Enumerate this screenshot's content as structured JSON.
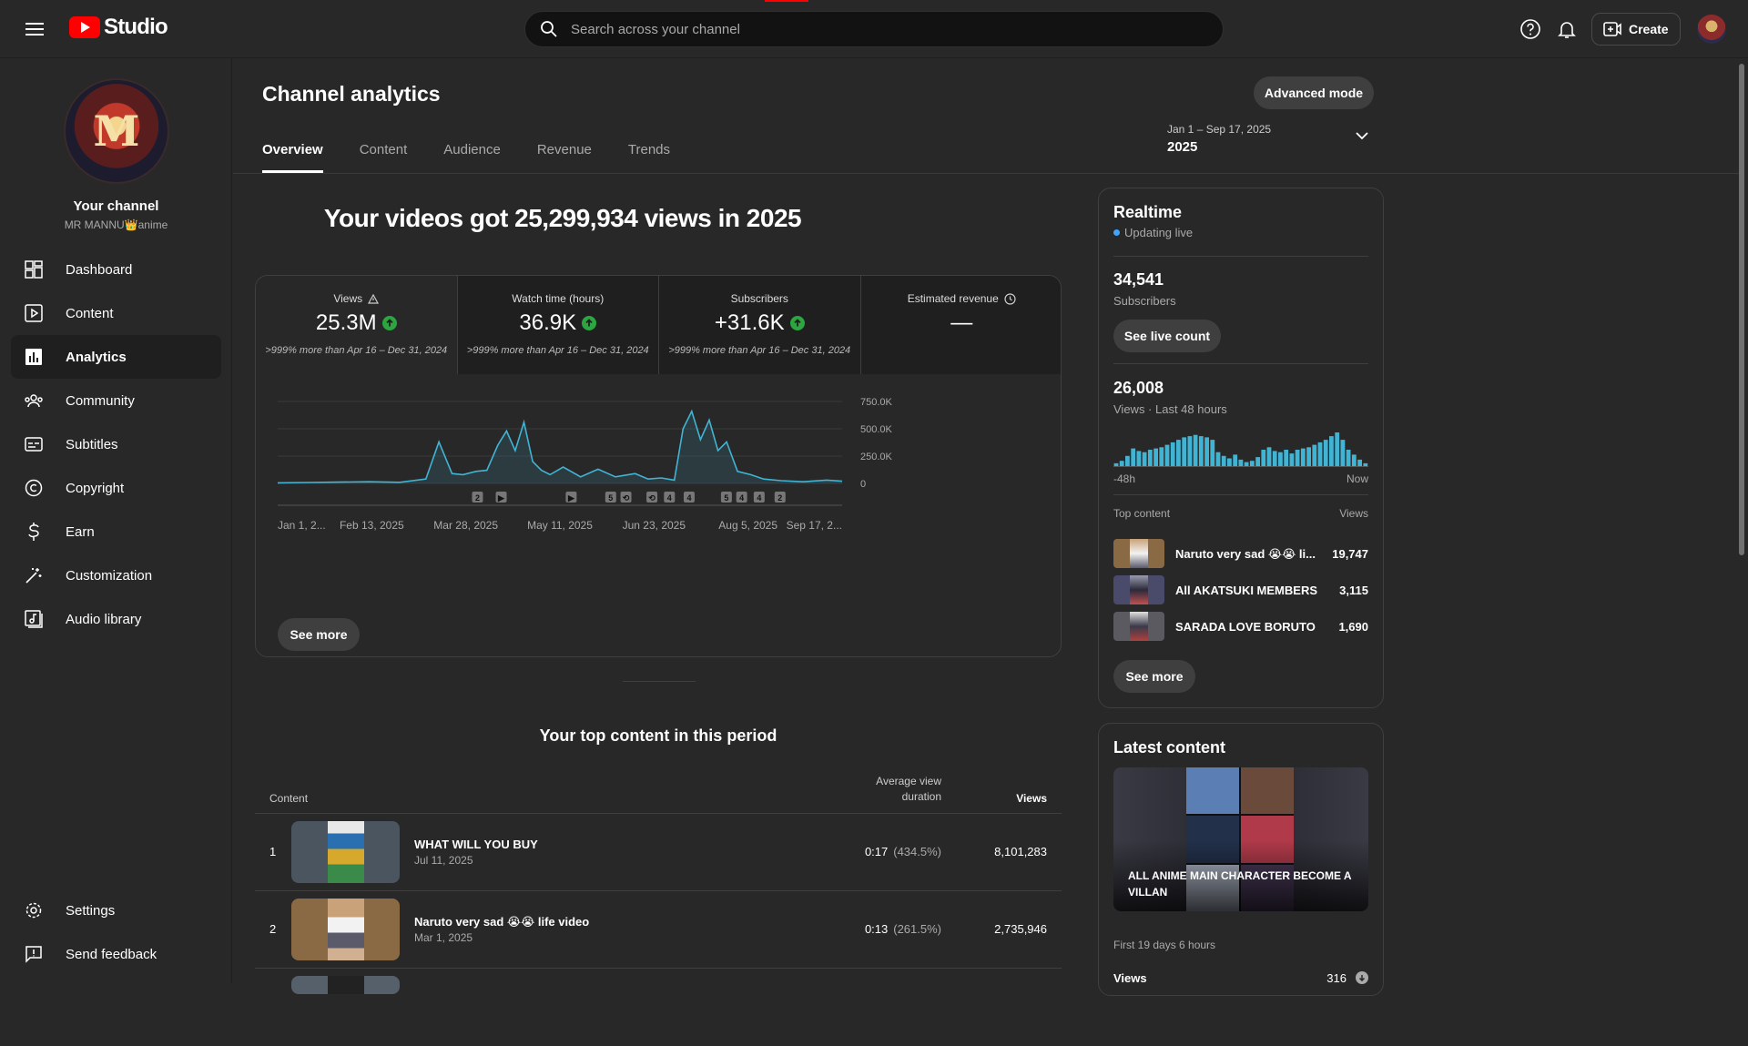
{
  "app": {
    "logo_text": "Studio"
  },
  "search": {
    "placeholder": "Search across your channel"
  },
  "topbar": {
    "create_label": "Create"
  },
  "sidebar": {
    "avatar_letter": "M",
    "your_channel": "Your channel",
    "channel_name": "MR MANNU👑anime",
    "items": [
      {
        "label": "Dashboard",
        "icon": "dashboard-icon"
      },
      {
        "label": "Content",
        "icon": "content-icon"
      },
      {
        "label": "Analytics",
        "icon": "analytics-icon",
        "active": true
      },
      {
        "label": "Community",
        "icon": "community-icon"
      },
      {
        "label": "Subtitles",
        "icon": "subtitles-icon"
      },
      {
        "label": "Copyright",
        "icon": "copyright-icon"
      },
      {
        "label": "Earn",
        "icon": "earn-icon"
      },
      {
        "label": "Customization",
        "icon": "customization-icon"
      },
      {
        "label": "Audio library",
        "icon": "audio-library-icon"
      }
    ],
    "settings": "Settings",
    "feedback": "Send feedback"
  },
  "header": {
    "title": "Channel analytics",
    "advanced_mode": "Advanced mode",
    "tabs": [
      "Overview",
      "Content",
      "Audience",
      "Revenue",
      "Trends"
    ],
    "active_tab": "Overview",
    "date_range_small": "Jan 1 – Sep 17, 2025",
    "date_range_big": "2025"
  },
  "overview": {
    "headline": "Your videos got 25,299,934 views in 2025",
    "metrics": [
      {
        "label": "Views",
        "value": "25.3M",
        "note": ">999% more than Apr 16 – Dec 31, 2024",
        "up": true,
        "icon": "warning-icon"
      },
      {
        "label": "Watch time (hours)",
        "value": "36.9K",
        "note": ">999% more than Apr 16 – Dec 31, 2024",
        "up": true
      },
      {
        "label": "Subscribers",
        "value": "+31.6K",
        "note": ">999% more than Apr 16 – Dec 31, 2024",
        "up": true
      },
      {
        "label": "Estimated revenue",
        "value": "—",
        "note": "",
        "up": false,
        "icon": "clock-icon"
      }
    ],
    "see_more": "See more"
  },
  "chart_data": [
    {
      "type": "area",
      "title": "",
      "x_tick_labels": [
        "Jan 1, 2...",
        "Feb 13, 2025",
        "Mar 28, 2025",
        "May 11, 2025",
        "Jun 23, 2025",
        "Aug 5, 2025",
        "Sep 17, 2..."
      ],
      "y_tick_labels": [
        "750.0K",
        "500.0K",
        "250.0K",
        "0"
      ],
      "ylim": [
        0,
        750000
      ],
      "x_range": [
        "2025-01-01",
        "2025-09-17"
      ],
      "series": [
        {
          "color": "#41b4d4",
          "x": [
            "2025-01-01",
            "2025-01-15",
            "2025-01-29",
            "2025-02-12",
            "2025-02-26",
            "2025-03-10",
            "2025-03-16",
            "2025-03-22",
            "2025-03-27",
            "2025-04-02",
            "2025-04-07",
            "2025-04-12",
            "2025-04-16",
            "2025-04-20",
            "2025-04-24",
            "2025-04-28",
            "2025-05-02",
            "2025-05-06",
            "2025-05-12",
            "2025-05-20",
            "2025-05-28",
            "2025-06-05",
            "2025-06-14",
            "2025-06-20",
            "2025-06-26",
            "2025-07-02",
            "2025-07-06",
            "2025-07-10",
            "2025-07-14",
            "2025-07-18",
            "2025-07-22",
            "2025-07-26",
            "2025-07-31",
            "2025-08-06",
            "2025-08-12",
            "2025-08-20",
            "2025-08-30",
            "2025-09-10",
            "2025-09-17"
          ],
          "y": [
            5000,
            8000,
            12000,
            15000,
            10000,
            40000,
            380000,
            90000,
            80000,
            110000,
            120000,
            350000,
            480000,
            300000,
            560000,
            200000,
            120000,
            80000,
            150000,
            60000,
            130000,
            60000,
            90000,
            40000,
            50000,
            30000,
            500000,
            660000,
            400000,
            580000,
            300000,
            380000,
            110000,
            80000,
            40000,
            25000,
            15000,
            30000,
            20000
          ]
        }
      ],
      "markers": [
        "2",
        "play",
        "play",
        "5",
        "short",
        "short",
        "4",
        "4",
        "5",
        "4",
        "4",
        "2"
      ]
    },
    {
      "type": "bar",
      "title": "Views · Last 48 hours",
      "x_tick_labels": [
        "-48h",
        "Now"
      ],
      "values": [
        3,
        5,
        9,
        15,
        13,
        12,
        14,
        15,
        16,
        18,
        20,
        22,
        24,
        25,
        26,
        25,
        24,
        22,
        12,
        9,
        7,
        10,
        6,
        4,
        5,
        8,
        14,
        16,
        13,
        12,
        14,
        11,
        14,
        15,
        16,
        18,
        20,
        22,
        25,
        28,
        22,
        14,
        10,
        6,
        3
      ]
    }
  ],
  "realtime": {
    "title": "Realtime",
    "live": "Updating live",
    "subs_value": "34,541",
    "subs_label": "Subscribers",
    "live_count_btn": "See live count",
    "views_value": "26,008",
    "views_label": "Views · Last 48 hours",
    "axis_start": "-48h",
    "axis_end": "Now",
    "top_content_label": "Top content",
    "views_col": "Views",
    "items": [
      {
        "name": "Naruto very sad 😭😭 li...",
        "views": "19,747"
      },
      {
        "name": "All AKATSUKI MEMBERS ...",
        "views": "3,115"
      },
      {
        "name": "SARADA LOVE BORUTO ...",
        "views": "1,690"
      }
    ],
    "see_more": "See more"
  },
  "latest": {
    "title": "Latest content",
    "video_title": "ALL ANIME MAIN CHARACTER BECOME A VILLAN",
    "first_period": "First 19 days 6 hours",
    "views_label": "Views",
    "views_value": "316"
  },
  "top_content": {
    "title": "Your top content in this period",
    "col_content": "Content",
    "col_avg": "Average view duration",
    "col_views": "Views",
    "rows": [
      {
        "rank": "1",
        "title": "WHAT WILL YOU BUY",
        "date": "Jul 11, 2025",
        "duration": "0:17",
        "pct": "(434.5%)",
        "views": "8,101,283"
      },
      {
        "rank": "2",
        "title": "Naruto very sad 😭😭 life video",
        "date": "Mar 1, 2025",
        "duration": "0:13",
        "pct": "(261.5%)",
        "views": "2,735,946"
      }
    ]
  }
}
